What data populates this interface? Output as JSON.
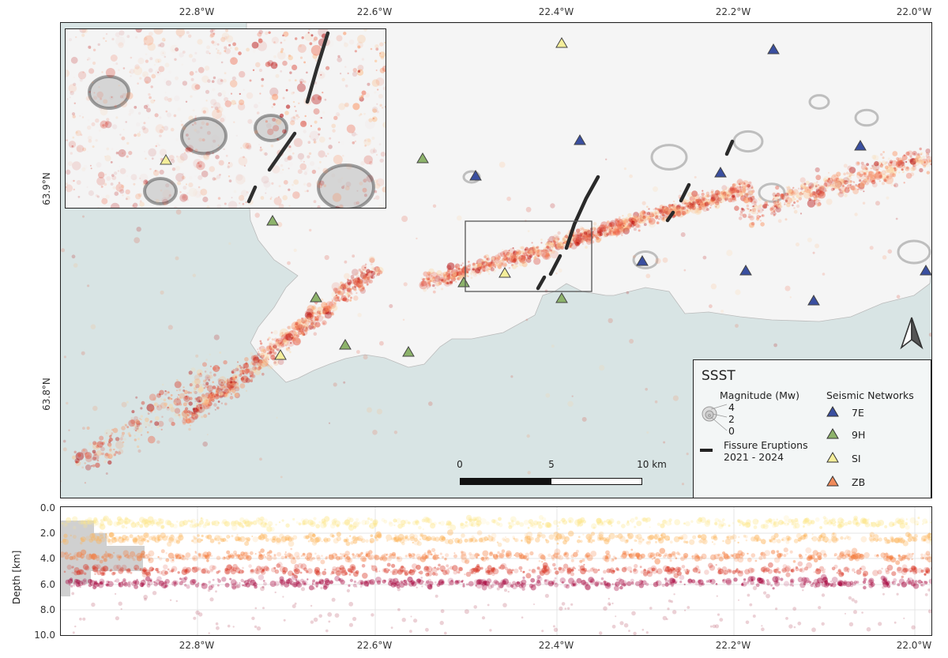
{
  "map": {
    "lon_ticks": [
      "22.8°W",
      "22.6°W",
      "22.4°W",
      "22.2°W",
      "22.0°W"
    ],
    "lat_ticks": [
      "63.9°N",
      "63.8°N"
    ],
    "scale_bar": {
      "labels": [
        "0",
        "5",
        "10 km"
      ]
    },
    "north_arrow": "north-arrow-icon",
    "colors": {
      "sea": "#d8e4e4",
      "land": "#f4f4f4",
      "fissure": "#2a2a2a",
      "net_7E": "#3a4fa0",
      "net_9H": "#8db36b",
      "net_SI": "#f4ee9a",
      "net_ZB": "#ef8a5a"
    }
  },
  "legend": {
    "title": "SSST",
    "magnitude_title": "Magnitude (Mw)",
    "magnitude_values": [
      "4",
      "2",
      "0"
    ],
    "fissure_label_1": "Fissure Eruptions",
    "fissure_label_2": "2021 - 2024",
    "networks_title": "Seismic Networks",
    "networks": [
      "7E",
      "9H",
      "SI",
      "ZB"
    ]
  },
  "depth_panel": {
    "axis_title": "Depth [km]",
    "depth_ticks": [
      "0.0",
      "2.0",
      "4.0",
      "6.0",
      "8.0",
      "10.0"
    ],
    "lon_ticks": [
      "22.8°W",
      "22.6°W",
      "22.4°W",
      "22.2°W",
      "22.0°W"
    ]
  }
}
